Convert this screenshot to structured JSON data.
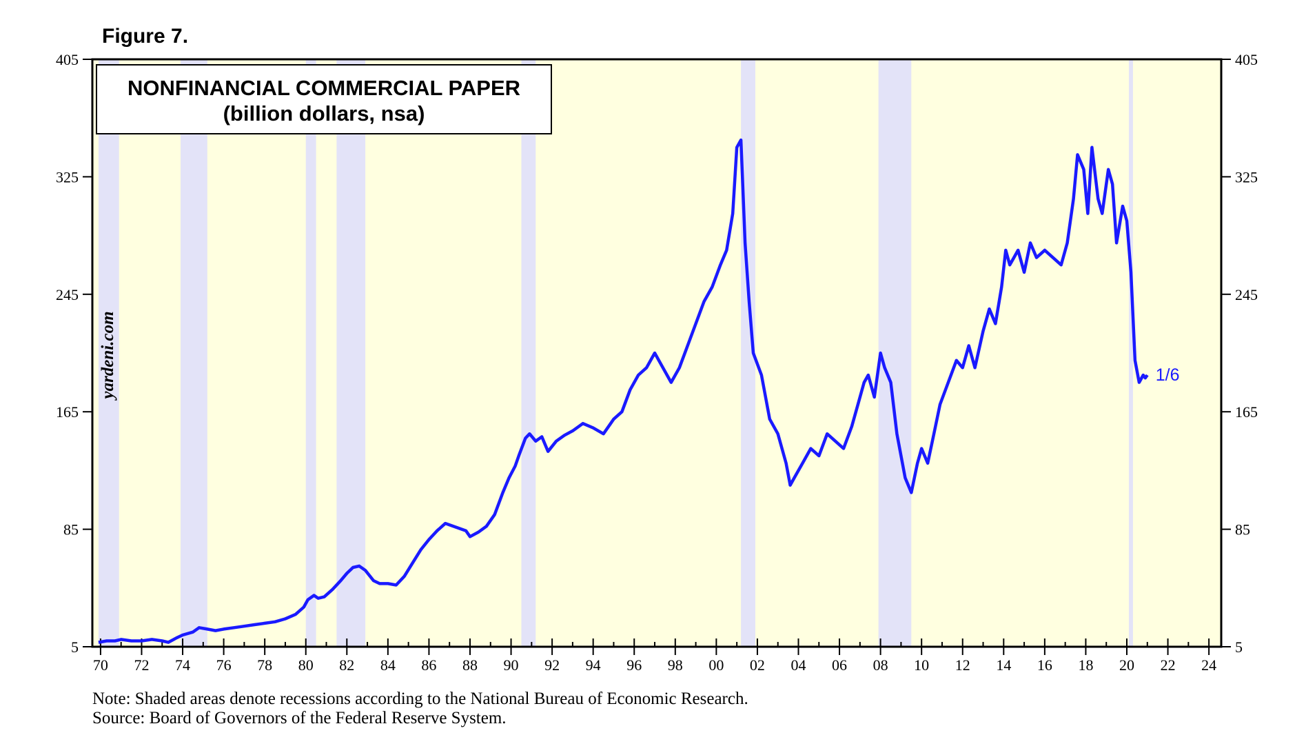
{
  "figure_label": "Figure 7.",
  "note": "Note: Shaded areas denote recessions according to the National Bureau of Economic Research.",
  "source": "Source: Board of Governors of the Federal Reserve System.",
  "watermark": "yardeni.com",
  "colors": {
    "plot_background": "#ffffe0",
    "recession_band": "#e3e3f8",
    "series_line": "#1a1aff",
    "frame": "#000000"
  },
  "chart_data": {
    "type": "line",
    "title": "NONFINANCIAL COMMERCIAL PAPER",
    "subtitle": "(billion dollars, nsa)",
    "xlabel": "",
    "ylabel": "",
    "xlim": [
      1969.6,
      2024.6
    ],
    "ylim": [
      5,
      405
    ],
    "y_ticks": [
      5,
      85,
      165,
      245,
      325,
      405
    ],
    "y_tick_labels": [
      "5",
      "85",
      "165",
      "245",
      "325",
      "405"
    ],
    "x_ticks": [
      1970,
      1972,
      1974,
      1976,
      1978,
      1980,
      1982,
      1984,
      1986,
      1988,
      1990,
      1992,
      1994,
      1996,
      1998,
      2000,
      2002,
      2004,
      2006,
      2008,
      2010,
      2012,
      2014,
      2016,
      2018,
      2020,
      2022,
      2024
    ],
    "x_tick_labels": [
      "70",
      "72",
      "74",
      "76",
      "78",
      "80",
      "82",
      "84",
      "86",
      "88",
      "90",
      "92",
      "94",
      "96",
      "98",
      "00",
      "02",
      "04",
      "06",
      "08",
      "10",
      "12",
      "14",
      "16",
      "18",
      "20",
      "22",
      "24"
    ],
    "recessions": [
      [
        1969.9,
        1970.9
      ],
      [
        1973.9,
        1975.2
      ],
      [
        1980.0,
        1980.5
      ],
      [
        1981.5,
        1982.9
      ],
      [
        1990.5,
        1991.2
      ],
      [
        2001.2,
        2001.9
      ],
      [
        2007.9,
        2009.5
      ],
      [
        2020.1,
        2020.3
      ]
    ],
    "end_annotation": "1/6",
    "series": [
      {
        "name": "Nonfinancial Commercial Paper",
        "x": [
          1969.9,
          1970.3,
          1970.7,
          1971.0,
          1971.5,
          1972.0,
          1972.5,
          1973.0,
          1973.3,
          1973.7,
          1974.0,
          1974.5,
          1974.8,
          1975.2,
          1975.6,
          1976.0,
          1976.5,
          1977.0,
          1977.5,
          1978.0,
          1978.5,
          1979.0,
          1979.5,
          1979.9,
          1980.1,
          1980.4,
          1980.6,
          1980.9,
          1981.3,
          1981.7,
          1982.0,
          1982.3,
          1982.6,
          1982.9,
          1983.3,
          1983.6,
          1984.0,
          1984.4,
          1984.8,
          1985.2,
          1985.6,
          1986.0,
          1986.4,
          1986.8,
          1987.0,
          1987.4,
          1987.8,
          1988.0,
          1988.4,
          1988.8,
          1989.2,
          1989.6,
          1989.9,
          1990.2,
          1990.4,
          1990.7,
          1990.9,
          1991.2,
          1991.5,
          1991.8,
          1992.2,
          1992.6,
          1993.0,
          1993.5,
          1994.0,
          1994.5,
          1995.0,
          1995.4,
          1995.8,
          1996.2,
          1996.6,
          1997.0,
          1997.4,
          1997.8,
          1998.2,
          1998.6,
          1999.0,
          1999.4,
          1999.8,
          2000.2,
          2000.5,
          2000.8,
          2001.0,
          2001.2,
          2001.4,
          2001.6,
          2001.8,
          2002.2,
          2002.6,
          2003.0,
          2003.4,
          2003.6,
          2003.8,
          2004.2,
          2004.6,
          2005.0,
          2005.4,
          2005.8,
          2006.2,
          2006.6,
          2006.9,
          2007.2,
          2007.4,
          2007.7,
          2008.0,
          2008.2,
          2008.5,
          2008.8,
          2009.2,
          2009.5,
          2009.8,
          2010.0,
          2010.3,
          2010.6,
          2010.9,
          2011.3,
          2011.7,
          2012.0,
          2012.3,
          2012.6,
          2013.0,
          2013.3,
          2013.6,
          2013.9,
          2014.1,
          2014.3,
          2014.5,
          2014.7,
          2015.0,
          2015.3,
          2015.6,
          2016.0,
          2016.4,
          2016.8,
          2017.1,
          2017.4,
          2017.6,
          2017.9,
          2018.1,
          2018.3,
          2018.6,
          2018.8,
          2019.1,
          2019.3,
          2019.5,
          2019.8,
          2020.0,
          2020.2,
          2020.4,
          2020.6,
          2020.8,
          2020.9,
          2021.0
        ],
        "values": [
          8,
          9,
          9,
          10,
          9,
          9,
          10,
          9,
          8,
          11,
          13,
          15,
          18,
          17,
          16,
          17,
          18,
          19,
          20,
          21,
          22,
          24,
          27,
          32,
          37,
          40,
          38,
          39,
          44,
          50,
          55,
          59,
          60,
          57,
          50,
          48,
          48,
          47,
          53,
          62,
          71,
          78,
          84,
          89,
          88,
          86,
          84,
          80,
          83,
          87,
          95,
          110,
          120,
          128,
          136,
          147,
          150,
          145,
          148,
          138,
          145,
          149,
          152,
          157,
          154,
          150,
          160,
          165,
          180,
          190,
          195,
          205,
          195,
          185,
          195,
          210,
          225,
          240,
          250,
          265,
          275,
          300,
          345,
          350,
          280,
          240,
          205,
          190,
          160,
          150,
          130,
          115,
          120,
          130,
          140,
          135,
          150,
          145,
          140,
          155,
          170,
          185,
          190,
          175,
          205,
          195,
          185,
          150,
          120,
          110,
          130,
          140,
          130,
          150,
          170,
          185,
          200,
          195,
          210,
          195,
          220,
          235,
          225,
          250,
          275,
          265,
          270,
          275,
          260,
          280,
          270,
          275,
          270,
          265,
          280,
          310,
          340,
          330,
          300,
          345,
          310,
          300,
          330,
          320,
          280,
          305,
          295,
          260,
          200,
          185,
          190,
          188,
          190
        ]
      }
    ]
  }
}
